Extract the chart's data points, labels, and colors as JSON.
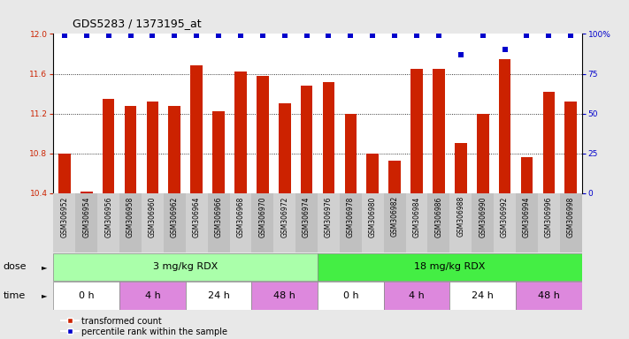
{
  "title": "GDS5283 / 1373195_at",
  "categories": [
    "GSM306952",
    "GSM306954",
    "GSM306956",
    "GSM306958",
    "GSM306960",
    "GSM306962",
    "GSM306964",
    "GSM306966",
    "GSM306968",
    "GSM306970",
    "GSM306972",
    "GSM306974",
    "GSM306976",
    "GSM306978",
    "GSM306980",
    "GSM306982",
    "GSM306984",
    "GSM306986",
    "GSM306988",
    "GSM306990",
    "GSM306992",
    "GSM306994",
    "GSM306996",
    "GSM306998"
  ],
  "bar_values": [
    10.8,
    10.42,
    11.35,
    11.28,
    11.32,
    11.28,
    11.68,
    11.22,
    11.62,
    11.58,
    11.3,
    11.48,
    11.52,
    11.2,
    10.8,
    10.73,
    11.65,
    11.65,
    10.9,
    11.2,
    11.75,
    10.76,
    11.42,
    11.32
  ],
  "percentile_values": [
    99,
    99,
    99,
    99,
    99,
    99,
    99,
    99,
    99,
    99,
    99,
    99,
    99,
    99,
    99,
    99,
    99,
    99,
    87,
    99,
    90,
    99,
    99,
    99
  ],
  "bar_color": "#cc2200",
  "percentile_color": "#0000cc",
  "ylim_left": [
    10.4,
    12.0
  ],
  "ylim_right": [
    0,
    100
  ],
  "yticks_left": [
    10.4,
    10.8,
    11.2,
    11.6,
    12.0
  ],
  "yticks_right": [
    0,
    25,
    50,
    75,
    100
  ],
  "ytick_labels_right": [
    "0",
    "25",
    "50",
    "75",
    "100%"
  ],
  "grid_lines": [
    10.8,
    11.2,
    11.6
  ],
  "background_color": "#e8e8e8",
  "plot_bg_color": "#ffffff",
  "xticklabel_bg": "#d0d0d0",
  "dose_groups": [
    {
      "label": "3 mg/kg RDX",
      "start": 0,
      "end": 12,
      "color": "#aaffaa"
    },
    {
      "label": "18 mg/kg RDX",
      "start": 12,
      "end": 24,
      "color": "#44ee44"
    }
  ],
  "time_groups": [
    {
      "label": "0 h",
      "start": 0,
      "end": 3,
      "color": "#ffffff"
    },
    {
      "label": "4 h",
      "start": 3,
      "end": 6,
      "color": "#dd88dd"
    },
    {
      "label": "24 h",
      "start": 6,
      "end": 9,
      "color": "#ffffff"
    },
    {
      "label": "48 h",
      "start": 9,
      "end": 12,
      "color": "#dd88dd"
    },
    {
      "label": "0 h",
      "start": 12,
      "end": 15,
      "color": "#ffffff"
    },
    {
      "label": "4 h",
      "start": 15,
      "end": 18,
      "color": "#dd88dd"
    },
    {
      "label": "24 h",
      "start": 18,
      "end": 21,
      "color": "#ffffff"
    },
    {
      "label": "48 h",
      "start": 21,
      "end": 24,
      "color": "#dd88dd"
    }
  ],
  "legend_items": [
    {
      "label": "transformed count",
      "color": "#cc2200",
      "marker": "s"
    },
    {
      "label": "percentile rank within the sample",
      "color": "#0000cc",
      "marker": "s"
    }
  ],
  "dose_label": "dose",
  "time_label": "time",
  "n_bars": 24,
  "bar_width": 0.55,
  "label_fontsize": 7,
  "tick_fontsize": 6.5,
  "row_label_fontsize": 8,
  "row_content_fontsize": 8
}
